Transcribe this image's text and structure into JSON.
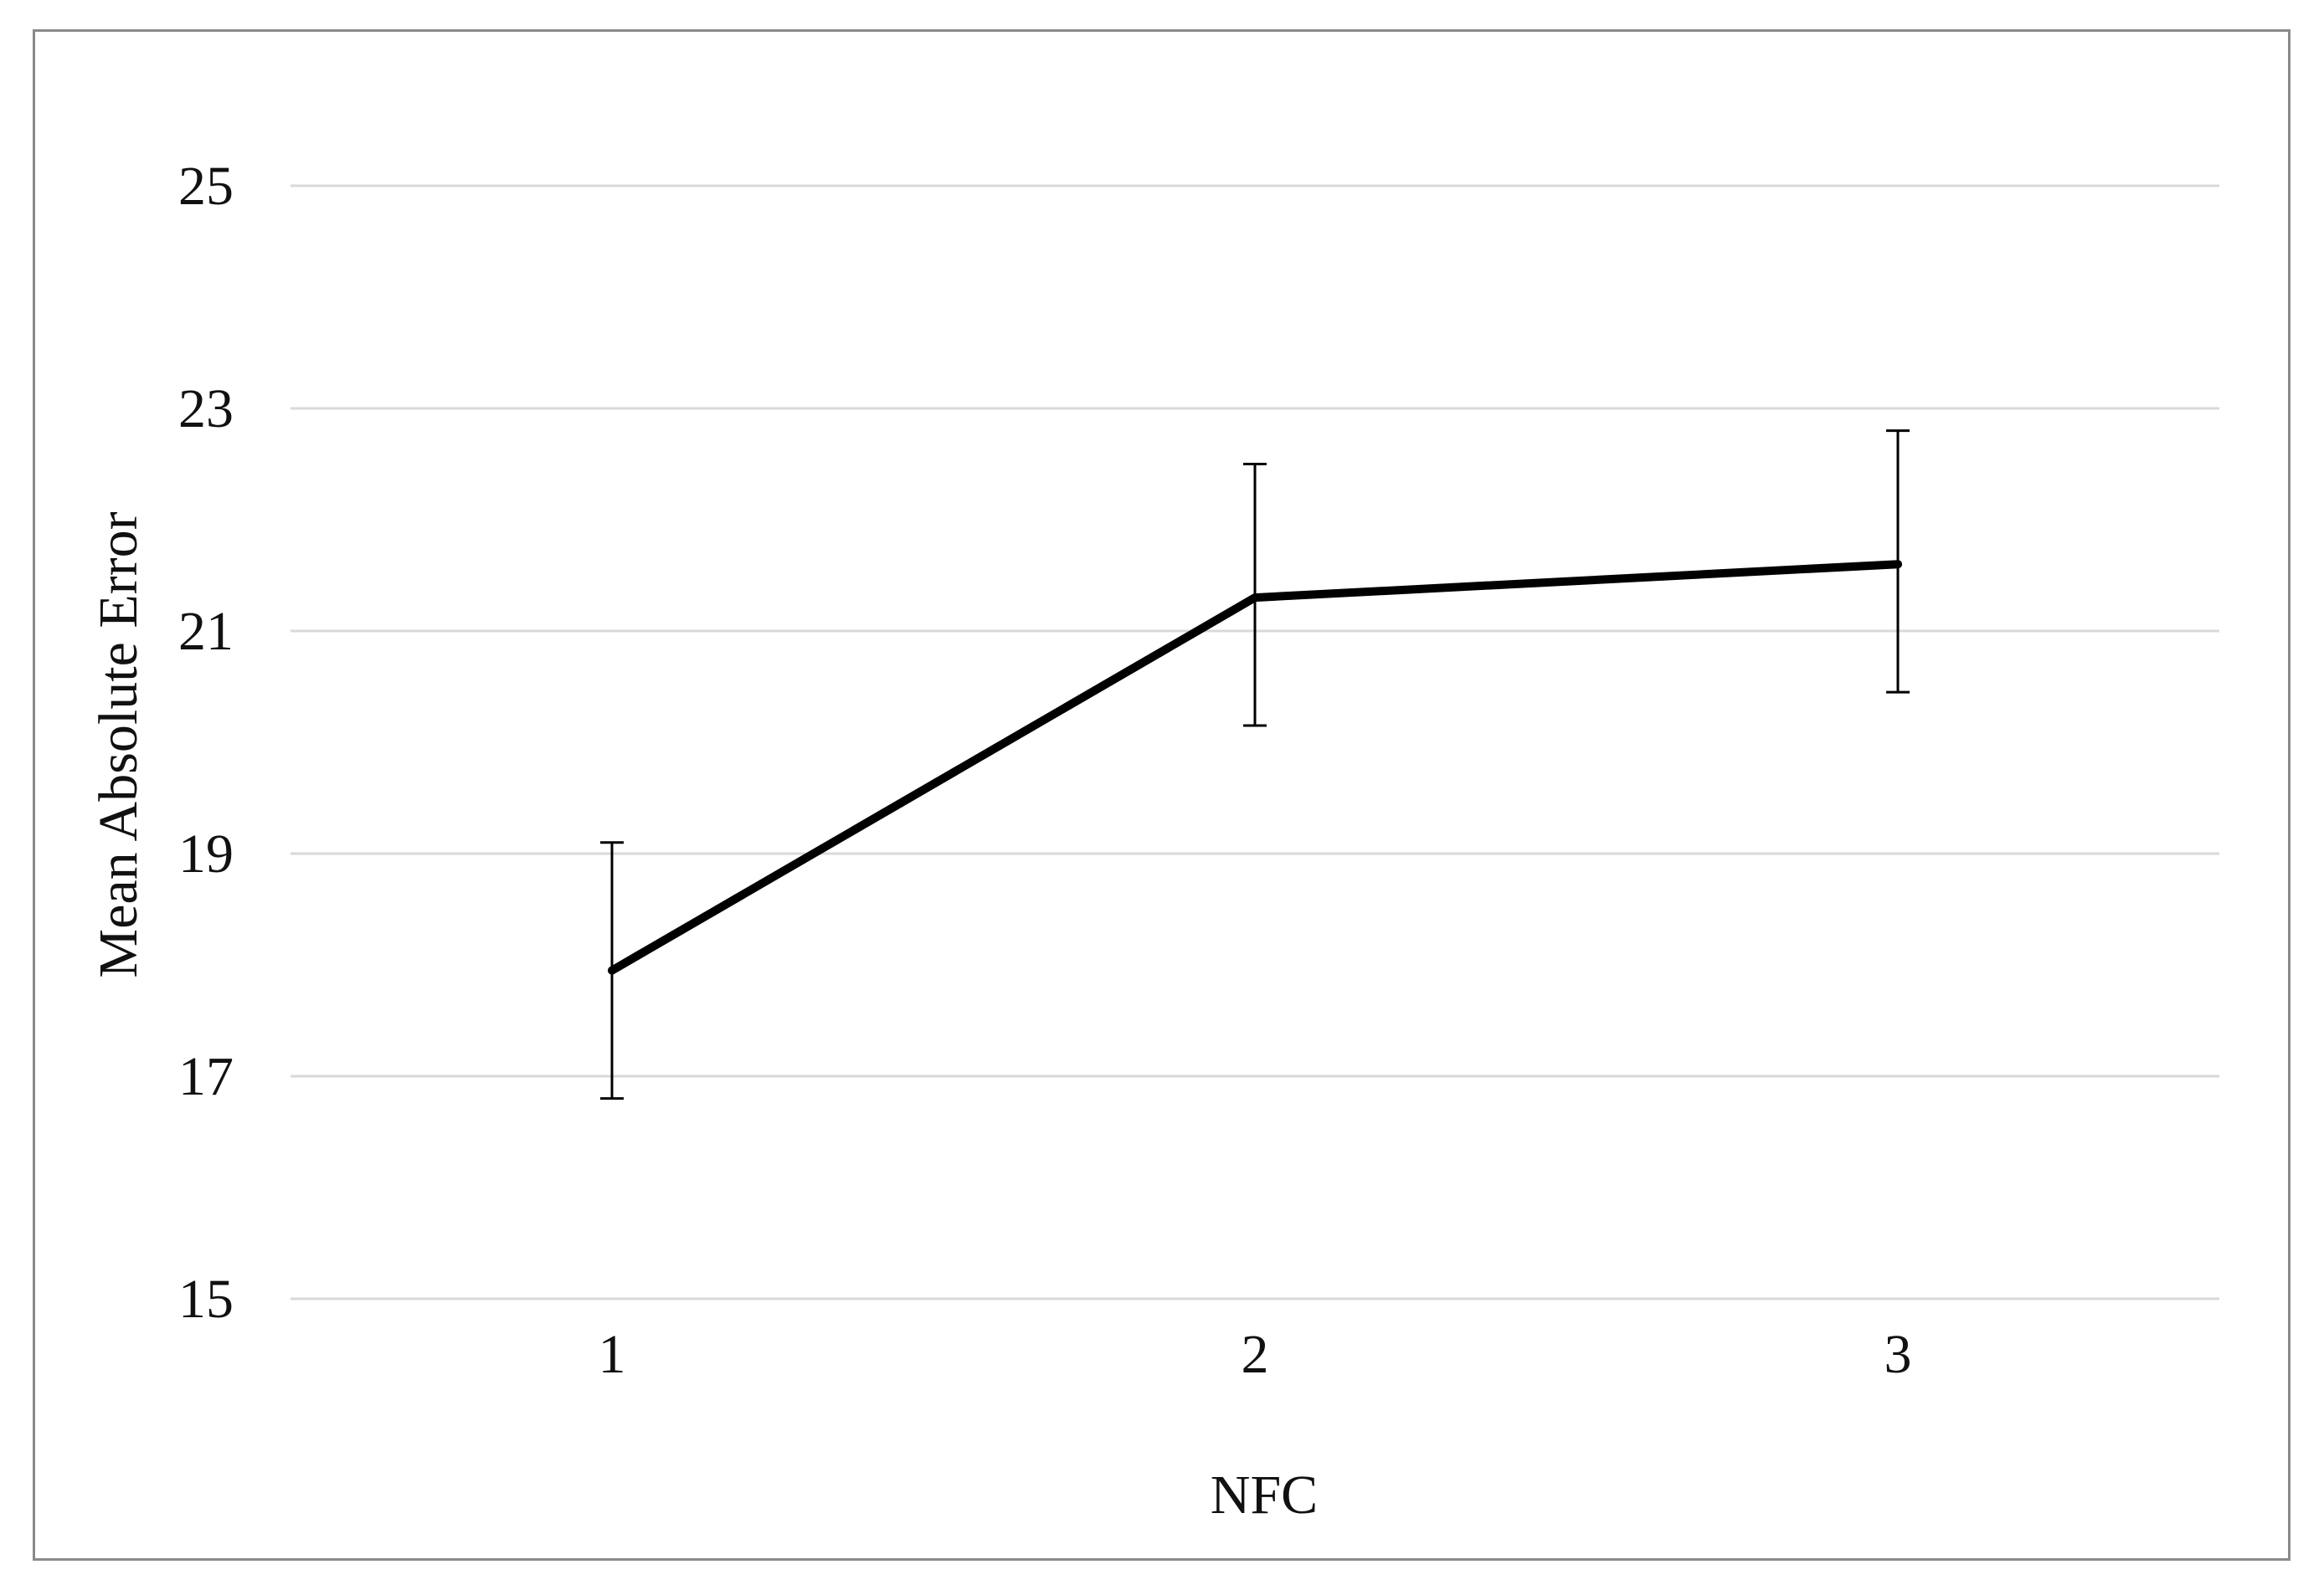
{
  "chart_data": {
    "type": "line",
    "title": "",
    "xlabel": "NFC",
    "ylabel": "Mean Absolute Error",
    "categories": [
      "1",
      "2",
      "3"
    ],
    "series": [
      {
        "values": [
          17.95,
          21.3,
          21.6
        ],
        "error_upper": [
          19.1,
          22.5,
          22.8
        ],
        "error_lower": [
          16.8,
          20.15,
          20.45
        ]
      }
    ],
    "ylim": [
      15,
      25
    ],
    "yticks": [
      "15",
      "17",
      "19",
      "21",
      "23",
      "25"
    ],
    "grid": true,
    "line_color": "#000000",
    "grid_color": "#d9d9d9"
  }
}
